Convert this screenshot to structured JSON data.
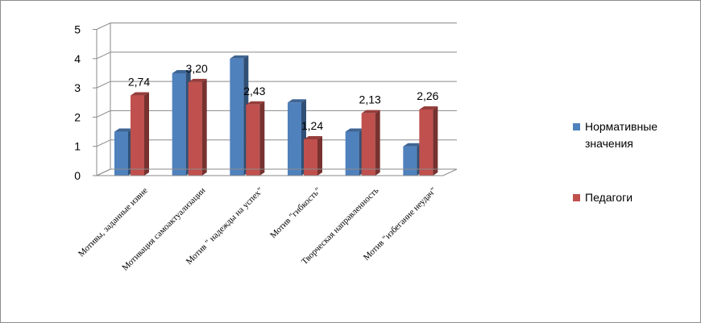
{
  "chart_data": {
    "type": "bar",
    "categories": [
      "Мотивы, заданные извне",
      "Мотивация самоактуализации",
      "Мотив \" надежды на успех\"",
      "Мотив \"гибкость\"",
      "Творческая направленность",
      "Мотив \"избегание неудач\""
    ],
    "series": [
      {
        "name": "Нормативные значения",
        "values": [
          1.5,
          3.5,
          4.0,
          2.5,
          1.5,
          1.0
        ],
        "color": "#4f81bd"
      },
      {
        "name": "Педагоги",
        "values": [
          2.74,
          3.2,
          2.43,
          1.24,
          2.13,
          2.26
        ],
        "color": "#c0504d",
        "data_labels": [
          "2,74",
          "3,20",
          "2,43",
          "1,24",
          "2,13",
          "2,26"
        ]
      }
    ],
    "yticks": [
      "0",
      "1",
      "2",
      "3",
      "4",
      "5"
    ],
    "ylim": [
      0,
      5
    ],
    "grid": true,
    "legend_position": "right",
    "style": "3d-clustered"
  }
}
